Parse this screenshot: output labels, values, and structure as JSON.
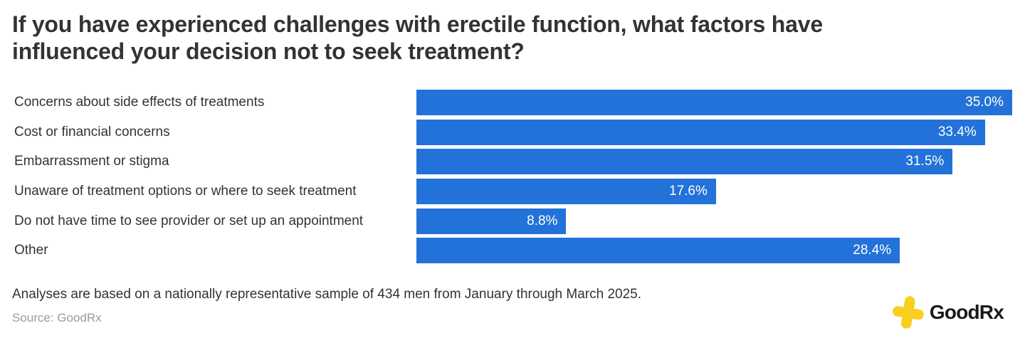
{
  "title_lines": [
    "If you have experienced challenges with erectile function, what factors have",
    "influenced your decision not to seek treatment?"
  ],
  "chart_data": {
    "type": "bar",
    "orientation": "horizontal",
    "title": "If you have experienced challenges with erectile function, what factors have influenced your decision not to seek treatment?",
    "categories": [
      "Concerns about side effects of treatments",
      "Cost or financial concerns",
      "Embarrassment or stigma",
      "Unaware of treatment options or where to seek treatment",
      "Do not have time to see provider or set up an appointment",
      "Other"
    ],
    "values": [
      35.0,
      33.4,
      31.5,
      17.6,
      8.8,
      28.4
    ],
    "value_labels": [
      "35.0%",
      "33.4%",
      "31.5%",
      "17.6%",
      "8.8%",
      "28.4%"
    ],
    "xlabel": "",
    "ylabel": "",
    "xlim": [
      0,
      35.0
    ],
    "grid": false,
    "legend": false,
    "bar_color": "#2372d9",
    "category_label_color": "#333333",
    "value_label_color": "#ffffff",
    "value_label_position": "inside-end"
  },
  "footnote": "Analyses are based on a nationally representative sample of 434 men from January through March 2025.",
  "source": "Source: GoodRx",
  "logo": {
    "text": "GoodRx",
    "plus_color": "#f9ce1f",
    "text_color": "#1a1a1a"
  }
}
